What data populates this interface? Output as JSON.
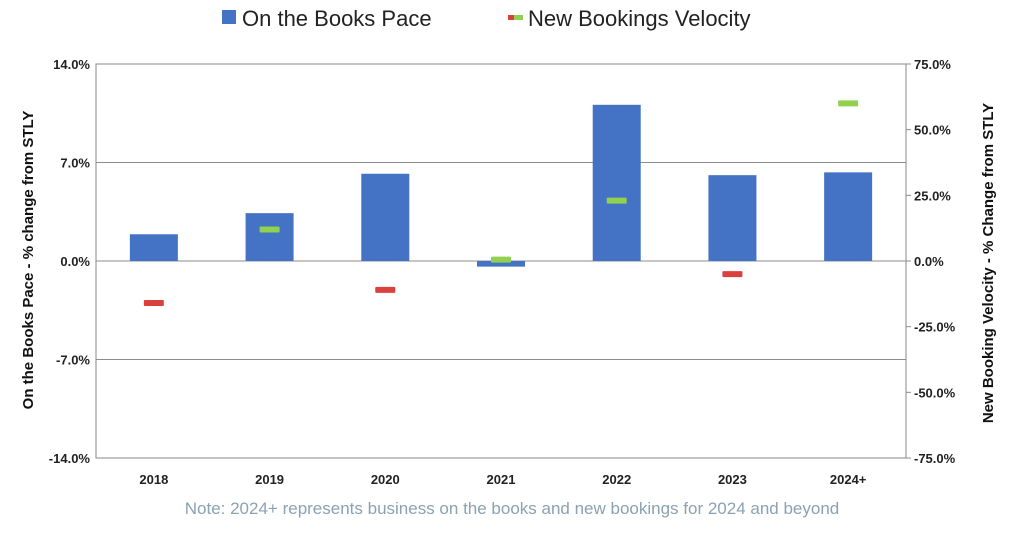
{
  "chart_data": {
    "type": "bar",
    "categories": [
      "2018",
      "2019",
      "2020",
      "2021",
      "2022",
      "2023",
      "2024+"
    ],
    "series": [
      {
        "name": "On the Books Pace",
        "kind": "bar",
        "axis": "left",
        "color": "#4472c4",
        "values": [
          1.9,
          3.4,
          6.2,
          -0.4,
          11.1,
          6.1,
          6.3
        ]
      },
      {
        "name": "New Bookings Velocity",
        "kind": "marker",
        "axis": "right",
        "positive_color": "#92d050",
        "negative_color": "#d9413e",
        "values": [
          -16,
          12,
          -11,
          0.5,
          23,
          -5,
          60
        ]
      }
    ],
    "ylabel": "On the Books Pace - % change from STLY",
    "y2label": "New Booking Velocity - % Change from STLY",
    "ylim": [
      -14,
      14
    ],
    "y2lim": [
      -75,
      75
    ],
    "yticks": [
      "14.0%",
      "7.0%",
      "0.0%",
      "-7.0%",
      "-14.0%"
    ],
    "y2ticks": [
      "75.0%",
      "50.0%",
      "25.0%",
      "0.0%",
      "-25.0%",
      "-50.0%",
      "-75.0%"
    ],
    "grid": true,
    "legend_position": "top-center",
    "note": "Note: 2024+ represents business on the books and new bookings for 2024 and beyond"
  }
}
